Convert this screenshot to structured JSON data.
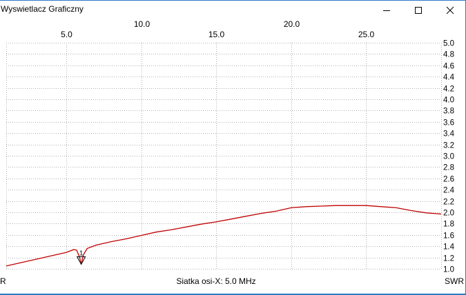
{
  "window": {
    "title": "Wyswietlacz Graficzny",
    "minimize_icon": "minimize-icon",
    "maximize_icon": "maximize-icon",
    "close_icon": "close-icon"
  },
  "footer": {
    "left_label": "R",
    "center_label": "Siatka osi-X: 5.0 MHz",
    "right_label": "SWR"
  },
  "chart_data": {
    "type": "line",
    "xlabel": "",
    "ylabel": "SWR",
    "xlim": [
      1.0,
      30.0
    ],
    "ylim": [
      1.0,
      5.0
    ],
    "x_ticks": [
      "5.0",
      "10.0",
      "15.0",
      "20.0",
      "25.0"
    ],
    "x_tick_values": [
      5,
      10,
      15,
      20,
      25
    ],
    "y_ticks": [
      "1.0",
      "1.2",
      "1.4",
      "1.6",
      "1.8",
      "2.0",
      "2.2",
      "2.4",
      "2.6",
      "2.8",
      "3.0",
      "3.2",
      "3.4",
      "3.6",
      "3.8",
      "4.0",
      "4.2",
      "4.4",
      "4.6",
      "4.8",
      "5.0"
    ],
    "grid": true,
    "line_color": "#c00000",
    "marker": {
      "label": "1",
      "x": 6.0,
      "y": 1.08
    },
    "series": [
      {
        "x": [
          1.0,
          2.0,
          3.0,
          4.0,
          5.0,
          5.5,
          5.7,
          5.9,
          6.0,
          6.15,
          6.4,
          7.0,
          8.0,
          9.0,
          10.0,
          11.0,
          12.0,
          13.0,
          14.0,
          15.0,
          16.0,
          17.0,
          18.0,
          19.0,
          20.0,
          21.0,
          22.0,
          23.0,
          24.0,
          25.0,
          26.0,
          27.0,
          28.0,
          29.0,
          30.0
        ],
        "values": [
          1.05,
          1.11,
          1.17,
          1.23,
          1.29,
          1.34,
          1.33,
          1.2,
          1.08,
          1.25,
          1.36,
          1.42,
          1.48,
          1.53,
          1.59,
          1.65,
          1.69,
          1.74,
          1.79,
          1.83,
          1.88,
          1.93,
          1.98,
          2.02,
          2.08,
          2.1,
          2.11,
          2.12,
          2.12,
          2.12,
          2.1,
          2.08,
          2.03,
          1.99,
          1.97
        ]
      }
    ]
  }
}
